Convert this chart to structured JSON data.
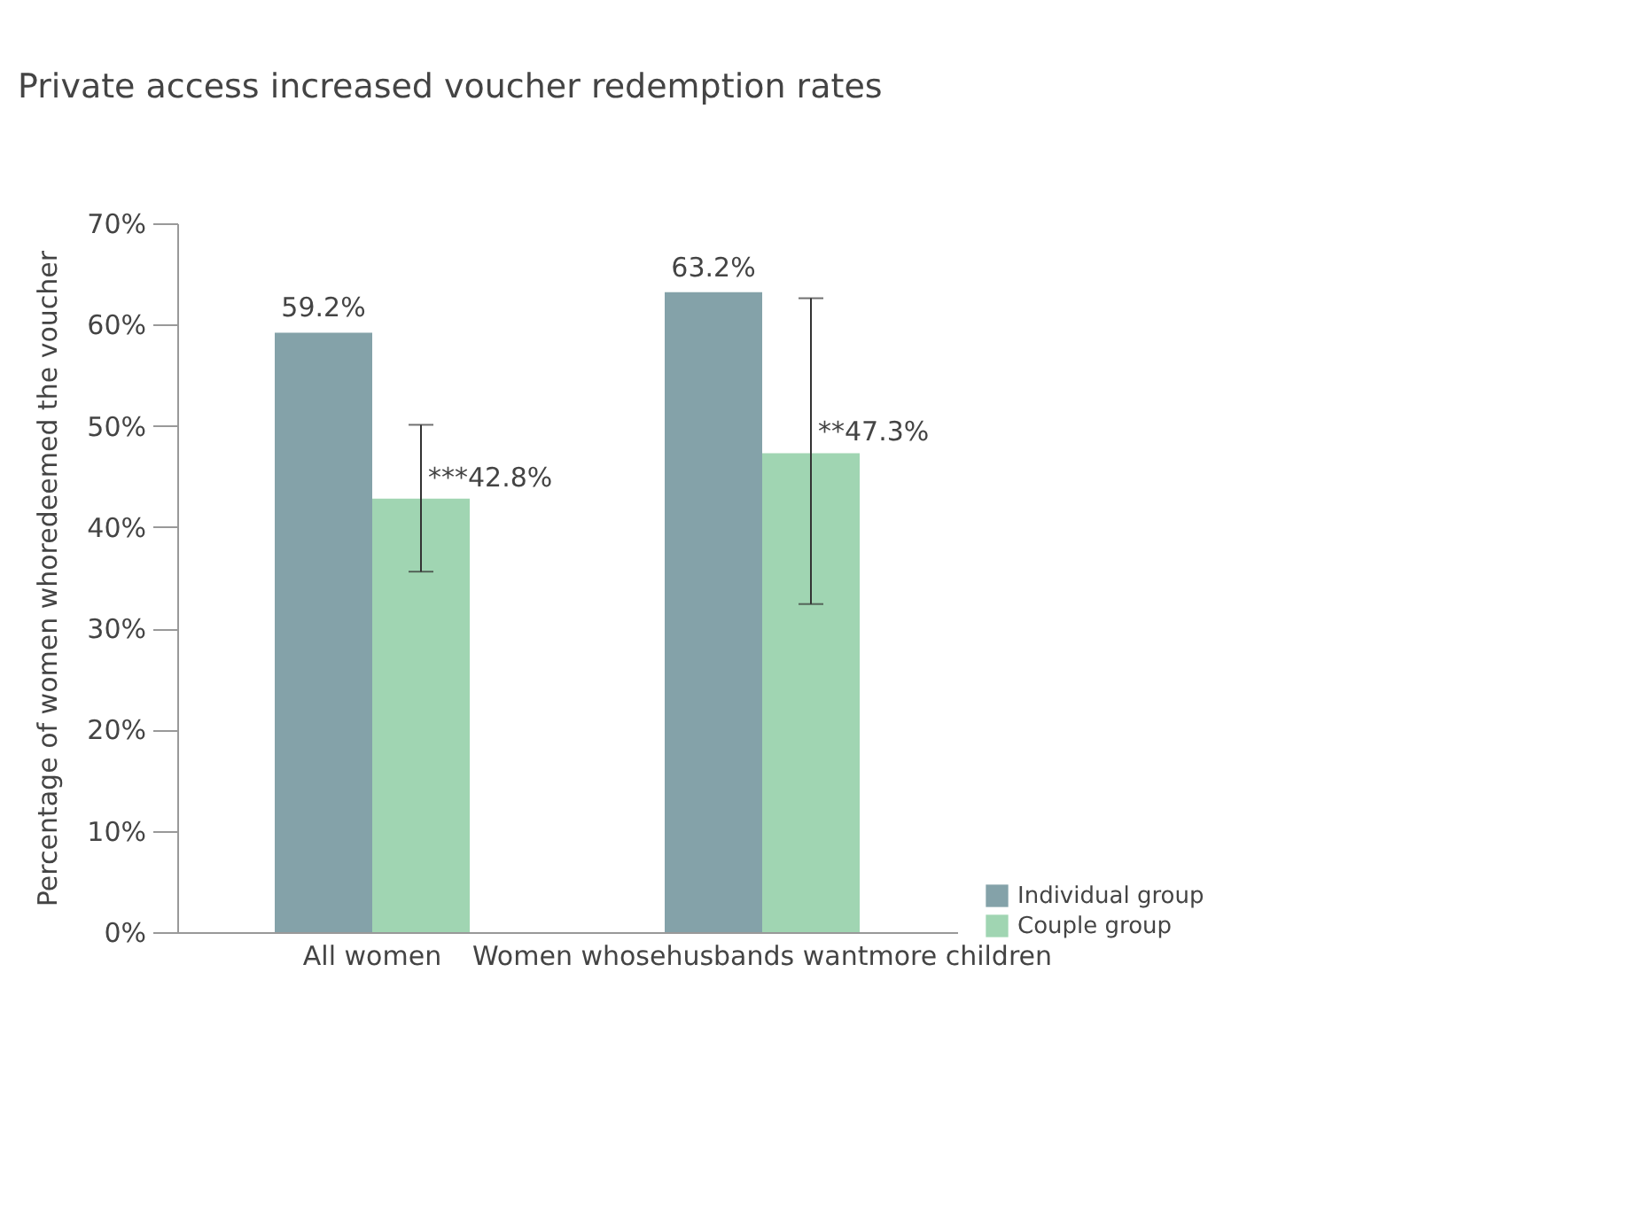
{
  "chart_data": {
    "type": "bar",
    "title": "Private access increased voucher redemption rates",
    "ylabel": "Percentage of women whoredeemed the voucher",
    "categories": [
      "All women",
      "Women whosehusbands wantmore children"
    ],
    "series": [
      {
        "name": "Individual group",
        "color": "#84a2a9",
        "values": [
          59.2,
          63.2
        ],
        "value_labels": [
          "59.2%",
          "63.2%"
        ]
      },
      {
        "name": "Couple group",
        "color": "#a0d5b2",
        "values": [
          42.8,
          47.3
        ],
        "value_labels": [
          "***42.8%",
          "**47.3%"
        ],
        "errors": [
          [
            35.6,
            50.1
          ],
          [
            32.4,
            62.6
          ]
        ]
      }
    ],
    "ylim": [
      0,
      70
    ],
    "yticks": [
      {
        "value": 0,
        "label": "0%"
      },
      {
        "value": 10,
        "label": "10%"
      },
      {
        "value": 20,
        "label": "20%"
      },
      {
        "value": 30,
        "label": "30%"
      },
      {
        "value": 40,
        "label": "40%"
      },
      {
        "value": 50,
        "label": "50%"
      },
      {
        "value": 60,
        "label": "60%"
      },
      {
        "value": 70,
        "label": "70%"
      }
    ],
    "grid": false,
    "legend": "bottom right"
  }
}
